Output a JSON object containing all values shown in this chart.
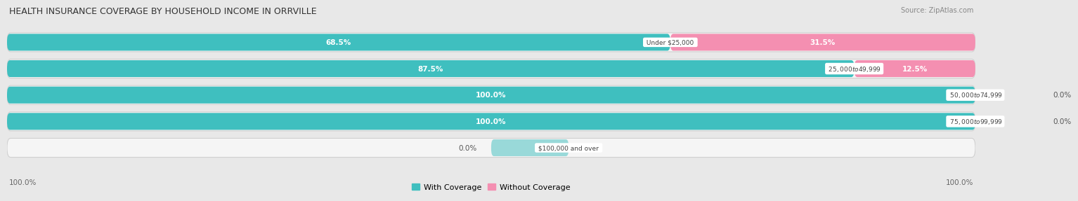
{
  "title": "HEALTH INSURANCE COVERAGE BY HOUSEHOLD INCOME IN ORRVILLE",
  "source": "Source: ZipAtlas.com",
  "categories": [
    "Under $25,000",
    "$25,000 to $49,999",
    "$50,000 to $74,999",
    "$75,000 to $99,999",
    "$100,000 and over"
  ],
  "with_coverage": [
    68.5,
    87.5,
    100.0,
    100.0,
    0.0
  ],
  "without_coverage": [
    31.5,
    12.5,
    0.0,
    0.0,
    0.0
  ],
  "color_with": "#3FBFBF",
  "color_without": "#F48FB1",
  "bg_color": "#e8e8e8",
  "bar_bg": "#f5f5f5",
  "bar_border": "#d0d0d0",
  "legend_with": "With Coverage",
  "legend_without": "Without Coverage"
}
